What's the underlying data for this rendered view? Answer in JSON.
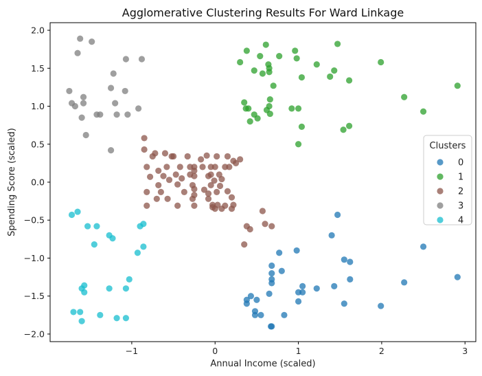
{
  "chart_data": {
    "type": "scatter",
    "title": "Agglomerative Clustering Results For Ward Linkage",
    "xlabel": "Annual Income (scaled)",
    "ylabel": "Spending Score (scaled)",
    "xlim": [
      -1.98,
      3.13
    ],
    "ylim": [
      -2.1,
      2.1
    ],
    "xticks": [
      -1,
      0,
      1,
      2,
      3
    ],
    "yticks": [
      -2.0,
      -1.5,
      -1.0,
      -0.5,
      0.0,
      0.5,
      1.0,
      1.5,
      2.0
    ],
    "xtick_labels": [
      "−1",
      "0",
      "1",
      "2",
      "3"
    ],
    "ytick_labels": [
      "−2.0",
      "−1.5",
      "−1.0",
      "−0.5",
      "0.0",
      "0.5",
      "1.0",
      "1.5",
      "2.0"
    ],
    "legend": {
      "title": "Clusters",
      "position": "center-right"
    },
    "series": [
      {
        "name": "0",
        "color": "#1f77b4",
        "points": [
          [
            0.38,
            -1.55
          ],
          [
            0.38,
            -1.6
          ],
          [
            0.43,
            -1.5
          ],
          [
            0.48,
            -1.7
          ],
          [
            0.5,
            -1.55
          ],
          [
            0.55,
            -1.75
          ],
          [
            0.48,
            -1.75
          ],
          [
            0.65,
            -1.47
          ],
          [
            0.67,
            -1.9
          ],
          [
            0.68,
            -1.9
          ],
          [
            0.68,
            -1.1
          ],
          [
            0.68,
            -1.2
          ],
          [
            0.68,
            -1.28
          ],
          [
            0.68,
            -1.33
          ],
          [
            0.77,
            -0.93
          ],
          [
            0.8,
            -1.17
          ],
          [
            0.83,
            -1.75
          ],
          [
            0.98,
            -0.9
          ],
          [
            1.0,
            -1.57
          ],
          [
            1.0,
            -1.45
          ],
          [
            1.05,
            -1.45
          ],
          [
            1.05,
            -1.37
          ],
          [
            1.22,
            -1.4
          ],
          [
            1.4,
            -0.7
          ],
          [
            1.43,
            -1.37
          ],
          [
            1.47,
            -0.43
          ],
          [
            1.55,
            -1.02
          ],
          [
            1.55,
            -1.6
          ],
          [
            1.62,
            -1.05
          ],
          [
            1.62,
            -1.28
          ],
          [
            1.99,
            -1.63
          ],
          [
            2.27,
            -1.32
          ],
          [
            2.5,
            -0.85
          ],
          [
            2.91,
            -1.25
          ]
        ]
      },
      {
        "name": "1",
        "color": "#2ca02c",
        "points": [
          [
            0.3,
            1.58
          ],
          [
            0.35,
            1.05
          ],
          [
            0.37,
            0.97
          ],
          [
            0.38,
            1.73
          ],
          [
            0.4,
            0.97
          ],
          [
            0.42,
            0.8
          ],
          [
            0.47,
            0.89
          ],
          [
            0.47,
            1.47
          ],
          [
            0.51,
            0.84
          ],
          [
            0.54,
            1.66
          ],
          [
            0.57,
            1.43
          ],
          [
            0.61,
            1.81
          ],
          [
            0.62,
            0.95
          ],
          [
            0.64,
            1.55
          ],
          [
            0.65,
            1.5
          ],
          [
            0.65,
            1.45
          ],
          [
            0.65,
            1.0
          ],
          [
            0.66,
            1.09
          ],
          [
            0.66,
            0.9
          ],
          [
            0.7,
            1.27
          ],
          [
            0.77,
            1.66
          ],
          [
            0.92,
            0.97
          ],
          [
            0.96,
            1.73
          ],
          [
            0.98,
            1.63
          ],
          [
            1.0,
            0.97
          ],
          [
            1.0,
            0.5
          ],
          [
            1.04,
            1.38
          ],
          [
            1.04,
            0.73
          ],
          [
            1.22,
            1.55
          ],
          [
            1.38,
            1.39
          ],
          [
            1.43,
            1.47
          ],
          [
            1.47,
            1.82
          ],
          [
            1.54,
            0.69
          ],
          [
            1.61,
            1.34
          ],
          [
            1.61,
            0.74
          ],
          [
            1.99,
            1.58
          ],
          [
            2.27,
            1.12
          ],
          [
            2.5,
            0.93
          ],
          [
            2.91,
            1.27
          ]
        ]
      },
      {
        "name": "2",
        "color": "#8c564b",
        "points": [
          [
            -0.85,
            0.58
          ],
          [
            -0.85,
            0.43
          ],
          [
            -0.82,
            -0.13
          ],
          [
            -0.82,
            -0.31
          ],
          [
            -0.82,
            0.2
          ],
          [
            -0.78,
            0.07
          ],
          [
            -0.75,
            0.34
          ],
          [
            -0.72,
            0.38
          ],
          [
            -0.7,
            -0.22
          ],
          [
            -0.68,
            0.15
          ],
          [
            -0.68,
            -0.04
          ],
          [
            -0.65,
            -0.13
          ],
          [
            -0.62,
            0.08
          ],
          [
            -0.6,
            0.38
          ],
          [
            -0.58,
            0.2
          ],
          [
            -0.57,
            -0.22
          ],
          [
            -0.55,
            0.03
          ],
          [
            -0.52,
            0.34
          ],
          [
            -0.5,
            0.34
          ],
          [
            -0.47,
            0.1
          ],
          [
            -0.45,
            -0.03
          ],
          [
            -0.45,
            -0.31
          ],
          [
            -0.42,
            0.2
          ],
          [
            -0.4,
            0.05
          ],
          [
            -0.37,
            -0.13
          ],
          [
            -0.33,
            0.34
          ],
          [
            -0.3,
            0.2
          ],
          [
            -0.3,
            0.1
          ],
          [
            -0.27,
            -0.04
          ],
          [
            -0.27,
            -0.22
          ],
          [
            -0.25,
            0.2
          ],
          [
            -0.25,
            0.15
          ],
          [
            -0.25,
            0.08
          ],
          [
            -0.25,
            -0.09
          ],
          [
            -0.25,
            -0.17
          ],
          [
            -0.25,
            -0.31
          ],
          [
            -0.17,
            0.3
          ],
          [
            -0.15,
            0.2
          ],
          [
            -0.13,
            -0.1
          ],
          [
            -0.1,
            0.35
          ],
          [
            -0.08,
            0.08
          ],
          [
            -0.08,
            -0.15
          ],
          [
            -0.08,
            -0.22
          ],
          [
            -0.05,
            -0.04
          ],
          [
            -0.05,
            0.2
          ],
          [
            -0.05,
            0.1
          ],
          [
            -0.03,
            -0.3
          ],
          [
            -0.03,
            -0.33
          ],
          [
            -0.01,
            0.02
          ],
          [
            0.0,
            0.2
          ],
          [
            0.0,
            -0.35
          ],
          [
            0.02,
            0.34
          ],
          [
            0.02,
            -0.13
          ],
          [
            0.03,
            -0.3
          ],
          [
            0.05,
            0.1
          ],
          [
            0.06,
            -0.05
          ],
          [
            0.08,
            -0.35
          ],
          [
            0.08,
            0.04
          ],
          [
            0.12,
            -0.31
          ],
          [
            0.12,
            0.2
          ],
          [
            0.15,
            0.34
          ],
          [
            0.15,
            -0.12
          ],
          [
            0.17,
            0.2
          ],
          [
            0.2,
            -0.2
          ],
          [
            0.2,
            -0.35
          ],
          [
            0.22,
            -0.3
          ],
          [
            0.22,
            0.28
          ],
          [
            0.25,
            0.25
          ],
          [
            0.3,
            0.3
          ],
          [
            0.35,
            -0.82
          ],
          [
            0.38,
            -0.58
          ],
          [
            0.42,
            -0.62
          ],
          [
            0.57,
            -0.38
          ],
          [
            0.6,
            -0.55
          ],
          [
            0.68,
            -0.58
          ]
        ]
      },
      {
        "name": "3",
        "color": "#7f7f7f",
        "points": [
          [
            -1.75,
            1.2
          ],
          [
            -1.72,
            1.04
          ],
          [
            -1.68,
            1.0
          ],
          [
            -1.65,
            1.7
          ],
          [
            -1.62,
            1.89
          ],
          [
            -1.6,
            0.85
          ],
          [
            -1.58,
            1.12
          ],
          [
            -1.58,
            1.04
          ],
          [
            -1.55,
            0.62
          ],
          [
            -1.48,
            1.85
          ],
          [
            -1.42,
            0.89
          ],
          [
            -1.38,
            0.89
          ],
          [
            -1.25,
            1.24
          ],
          [
            -1.25,
            0.42
          ],
          [
            -1.22,
            1.43
          ],
          [
            -1.2,
            1.04
          ],
          [
            -1.18,
            0.89
          ],
          [
            -1.08,
            1.2
          ],
          [
            -1.07,
            1.62
          ],
          [
            -1.05,
            0.89
          ],
          [
            -0.92,
            0.97
          ],
          [
            -0.88,
            1.62
          ]
        ]
      },
      {
        "name": "4",
        "color": "#17becf",
        "points": [
          [
            -1.72,
            -0.43
          ],
          [
            -1.7,
            -1.71
          ],
          [
            -1.65,
            -0.39
          ],
          [
            -1.62,
            -1.71
          ],
          [
            -1.6,
            -1.83
          ],
          [
            -1.6,
            -1.4
          ],
          [
            -1.57,
            -1.45
          ],
          [
            -1.57,
            -1.36
          ],
          [
            -1.53,
            -0.58
          ],
          [
            -1.45,
            -0.82
          ],
          [
            -1.42,
            -0.58
          ],
          [
            -1.38,
            -1.75
          ],
          [
            -1.27,
            -1.4
          ],
          [
            -1.27,
            -0.7
          ],
          [
            -1.23,
            -0.74
          ],
          [
            -1.18,
            -1.79
          ],
          [
            -1.07,
            -1.79
          ],
          [
            -1.07,
            -1.4
          ],
          [
            -1.03,
            -1.28
          ],
          [
            -0.93,
            -0.93
          ],
          [
            -0.9,
            -0.58
          ],
          [
            -0.86,
            -0.55
          ],
          [
            -0.86,
            -0.85
          ]
        ]
      }
    ]
  }
}
